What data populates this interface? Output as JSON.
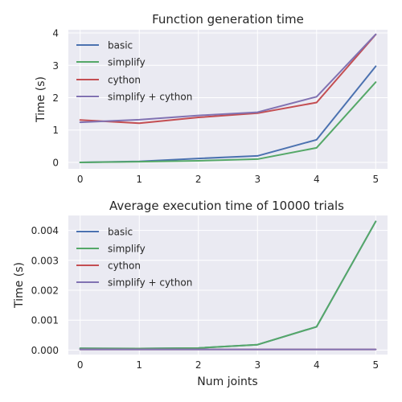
{
  "chart_data": [
    {
      "type": "line",
      "title": "Function generation time",
      "xlabel": "",
      "ylabel": "Time (s)",
      "x": [
        0,
        1,
        2,
        3,
        4,
        5
      ],
      "xlim": [
        -0.2,
        5.2
      ],
      "ylim": [
        -0.2,
        4.1
      ],
      "yticks": [
        "0",
        "1",
        "2",
        "3",
        "4"
      ],
      "ytick_values": [
        0,
        1,
        2,
        3,
        4
      ],
      "grid": true,
      "legend": "top-left",
      "series": [
        {
          "name": "basic",
          "color": "#4c72b0",
          "values": [
            0.0,
            0.03,
            0.12,
            0.2,
            0.7,
            2.97
          ]
        },
        {
          "name": "simplify",
          "color": "#55a868",
          "values": [
            0.0,
            0.02,
            0.05,
            0.1,
            0.45,
            2.48
          ]
        },
        {
          "name": "cython",
          "color": "#c44e52",
          "values": [
            1.31,
            1.21,
            1.39,
            1.52,
            1.85,
            3.95
          ]
        },
        {
          "name": "simplify + cython",
          "color": "#8172b2",
          "values": [
            1.24,
            1.32,
            1.45,
            1.55,
            2.03,
            3.96
          ]
        }
      ]
    },
    {
      "type": "line",
      "title": "Average execution time of 10000 trials",
      "xlabel": "Num joints",
      "ylabel": "Time (s)",
      "x": [
        0,
        1,
        2,
        3,
        4,
        5
      ],
      "xlim": [
        -0.2,
        5.2
      ],
      "ylim": [
        -0.00015,
        0.0045
      ],
      "yticks": [
        "0.000",
        "0.001",
        "0.002",
        "0.003",
        "0.004"
      ],
      "ytick_values": [
        0,
        0.001,
        0.002,
        0.003,
        0.004
      ],
      "grid": true,
      "legend": "top-left",
      "series": [
        {
          "name": "basic",
          "color": "#4c72b0",
          "values": [
            6e-05,
            5e-05,
            7e-05,
            0.00018,
            0.00078,
            0.0043
          ]
        },
        {
          "name": "simplify",
          "color": "#55a868",
          "values": [
            6e-05,
            5e-05,
            7e-05,
            0.00018,
            0.00078,
            0.0043
          ]
        },
        {
          "name": "cython",
          "color": "#c44e52",
          "values": [
            2e-05,
            2e-05,
            2e-05,
            2e-05,
            2e-05,
            2e-05
          ]
        },
        {
          "name": "simplify + cython",
          "color": "#8172b2",
          "values": [
            2e-05,
            2e-05,
            2e-05,
            2e-05,
            2e-05,
            2e-05
          ]
        }
      ]
    }
  ],
  "xtick_labels": [
    "0",
    "1",
    "2",
    "3",
    "4",
    "5"
  ]
}
